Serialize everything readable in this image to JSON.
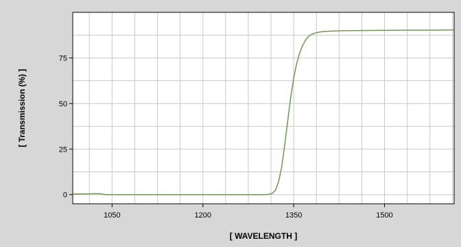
{
  "chart_data": {
    "type": "line",
    "title": "",
    "xlabel": "[ WAVELENGTH ]",
    "ylabel": "[ Transmission  (%) ]",
    "xlim": [
      985,
      1615
    ],
    "ylim": [
      -5,
      100
    ],
    "x_ticks": [
      1050,
      1200,
      1350,
      1500
    ],
    "y_ticks": [
      0,
      25,
      50,
      75
    ],
    "grid": true,
    "legend": "none",
    "colors": {
      "background": "#d7d7d7",
      "plot_background": "#ffffff",
      "grid": "#c8c8c8",
      "line": "#6b9a4f"
    },
    "series": [
      {
        "x": [
          985,
          1000,
          1020,
          1030,
          1040,
          1050,
          1100,
          1200,
          1250,
          1300,
          1310,
          1315,
          1320,
          1325,
          1330,
          1335,
          1340,
          1345,
          1350,
          1355,
          1360,
          1365,
          1370,
          1375,
          1380,
          1385,
          1390,
          1395,
          1400,
          1410,
          1420,
          1430,
          1450,
          1500,
          1550,
          1600,
          1615
        ],
        "y": [
          0.4,
          0.4,
          0.5,
          0.5,
          0,
          0,
          0,
          0,
          0,
          0,
          0.2,
          0.8,
          2.5,
          7,
          15,
          27,
          40,
          53,
          64,
          72,
          78,
          82,
          85,
          87,
          88,
          88.6,
          89,
          89.3,
          89.5,
          89.7,
          89.8,
          89.9,
          90,
          90.1,
          90.2,
          90.3,
          90.4
        ]
      }
    ]
  }
}
